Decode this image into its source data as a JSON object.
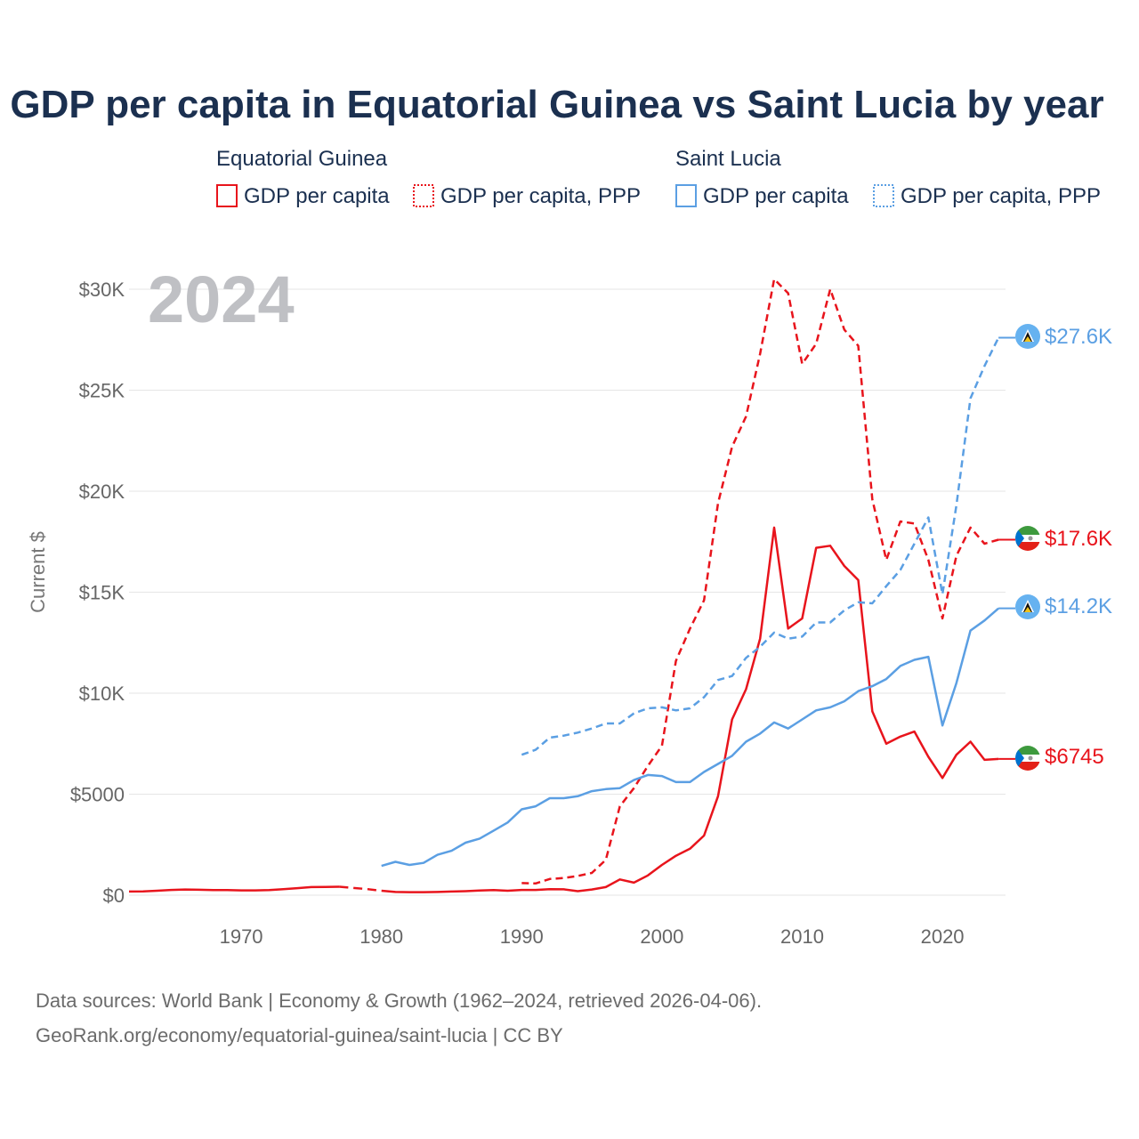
{
  "title": "GDP per capita in Equatorial Guinea vs Saint Lucia by year",
  "year_label": "2024",
  "legend": {
    "group_a": "Equatorial Guinea",
    "group_b": "Saint Lucia",
    "a_gdp": "GDP per capita",
    "a_ppp": "GDP per capita, PPP",
    "b_gdp": "GDP per capita",
    "b_ppp": "GDP per capita, PPP"
  },
  "colors": {
    "red": "#e8141c",
    "blue": "#5b9fe3",
    "grid": "#e6e6e6"
  },
  "end_labels": {
    "b_ppp": "$27.6K",
    "a_ppp": "$17.6K",
    "b_gdp": "$14.2K",
    "a_gdp": "$6745"
  },
  "source_line1": "Data sources: World Bank | Economy & Growth (1962–2024, retrieved 2026-04-06).",
  "source_line2": "GeoRank.org/economy/equatorial-guinea/saint-lucia | CC BY",
  "chart_data": {
    "type": "line",
    "title": "GDP per capita in Equatorial Guinea vs Saint Lucia by year",
    "ylabel": "Current $",
    "xlabel": "",
    "xlim": [
      1962,
      2024
    ],
    "ylim": [
      0,
      30000
    ],
    "x_ticks": [
      1970,
      1980,
      1990,
      2000,
      2010,
      2020
    ],
    "y_ticks": [
      0,
      5000,
      10000,
      15000,
      20000,
      25000,
      30000
    ],
    "y_tick_labels": [
      "$0",
      "$5000",
      "$10K",
      "$15K",
      "$20K",
      "$25K",
      "$30K"
    ],
    "series": [
      {
        "key": "a_gdp",
        "name": "Equatorial Guinea GDP per capita",
        "color": "red",
        "style": "solid",
        "points": [
          [
            1962,
            180
          ],
          [
            1963,
            190
          ],
          [
            1964,
            220
          ],
          [
            1965,
            260
          ],
          [
            1966,
            280
          ],
          [
            1967,
            270
          ],
          [
            1968,
            250
          ],
          [
            1969,
            250
          ],
          [
            1970,
            240
          ],
          [
            1971,
            240
          ],
          [
            1972,
            250
          ],
          [
            1973,
            300
          ],
          [
            1974,
            350
          ],
          [
            1975,
            400
          ],
          [
            1976,
            410
          ],
          [
            1977,
            420
          ],
          [
            1978,
            360
          ],
          [
            1979,
            300
          ],
          [
            1980,
            220
          ],
          [
            1981,
            160
          ],
          [
            1982,
            150
          ],
          [
            1983,
            150
          ],
          [
            1984,
            160
          ],
          [
            1985,
            180
          ],
          [
            1986,
            200
          ],
          [
            1987,
            230
          ],
          [
            1988,
            250
          ],
          [
            1989,
            220
          ],
          [
            1990,
            260
          ],
          [
            1991,
            260
          ],
          [
            1992,
            300
          ],
          [
            1993,
            290
          ],
          [
            1994,
            200
          ],
          [
            1995,
            280
          ],
          [
            1996,
            400
          ],
          [
            1997,
            780
          ],
          [
            1998,
            620
          ],
          [
            1999,
            980
          ],
          [
            2000,
            1500
          ],
          [
            2001,
            1950
          ],
          [
            2002,
            2300
          ],
          [
            2003,
            2950
          ],
          [
            2004,
            4900
          ],
          [
            2005,
            8700
          ],
          [
            2006,
            10200
          ],
          [
            2007,
            12700
          ],
          [
            2008,
            18200
          ],
          [
            2009,
            13200
          ],
          [
            2010,
            13700
          ],
          [
            2011,
            17200
          ],
          [
            2012,
            17300
          ],
          [
            2013,
            16300
          ],
          [
            2014,
            15600
          ],
          [
            2015,
            9100
          ],
          [
            2016,
            7500
          ],
          [
            2017,
            7850
          ],
          [
            2018,
            8100
          ],
          [
            2019,
            6850
          ],
          [
            2020,
            5800
          ],
          [
            2021,
            6950
          ],
          [
            2022,
            7600
          ],
          [
            2023,
            6700
          ],
          [
            2024,
            6745
          ]
        ],
        "gaps": [
          [
            1977,
            1980
          ]
        ]
      },
      {
        "key": "a_ppp",
        "name": "Equatorial Guinea GDP per capita, PPP",
        "color": "red",
        "style": "dashed",
        "points": [
          [
            1990,
            600
          ],
          [
            1991,
            580
          ],
          [
            1992,
            800
          ],
          [
            1993,
            850
          ],
          [
            1994,
            950
          ],
          [
            1995,
            1100
          ],
          [
            1996,
            1750
          ],
          [
            1997,
            4400
          ],
          [
            1998,
            5300
          ],
          [
            1999,
            6400
          ],
          [
            2000,
            7400
          ],
          [
            2001,
            11600
          ],
          [
            2002,
            13200
          ],
          [
            2003,
            14600
          ],
          [
            2004,
            19400
          ],
          [
            2005,
            22200
          ],
          [
            2006,
            23700
          ],
          [
            2007,
            26800
          ],
          [
            2008,
            30500
          ],
          [
            2009,
            29800
          ],
          [
            2010,
            26300
          ],
          [
            2011,
            27300
          ],
          [
            2012,
            30000
          ],
          [
            2013,
            28000
          ],
          [
            2014,
            27200
          ],
          [
            2015,
            19600
          ],
          [
            2016,
            16600
          ],
          [
            2017,
            18500
          ],
          [
            2018,
            18400
          ],
          [
            2019,
            16600
          ],
          [
            2020,
            13700
          ],
          [
            2021,
            16800
          ],
          [
            2022,
            18200
          ],
          [
            2023,
            17400
          ],
          [
            2024,
            17600
          ]
        ],
        "gaps": []
      },
      {
        "key": "b_gdp",
        "name": "Saint Lucia GDP per capita",
        "color": "blue",
        "style": "solid",
        "points": [
          [
            1980,
            1450
          ],
          [
            1981,
            1650
          ],
          [
            1982,
            1500
          ],
          [
            1983,
            1600
          ],
          [
            1984,
            2000
          ],
          [
            1985,
            2200
          ],
          [
            1986,
            2600
          ],
          [
            1987,
            2800
          ],
          [
            1988,
            3200
          ],
          [
            1989,
            3600
          ],
          [
            1990,
            4250
          ],
          [
            1991,
            4400
          ],
          [
            1992,
            4800
          ],
          [
            1993,
            4800
          ],
          [
            1994,
            4900
          ],
          [
            1995,
            5150
          ],
          [
            1996,
            5250
          ],
          [
            1997,
            5300
          ],
          [
            1998,
            5700
          ],
          [
            1999,
            5950
          ],
          [
            2000,
            5900
          ],
          [
            2001,
            5600
          ],
          [
            2002,
            5600
          ],
          [
            2003,
            6100
          ],
          [
            2004,
            6500
          ],
          [
            2005,
            6900
          ],
          [
            2006,
            7600
          ],
          [
            2007,
            8000
          ],
          [
            2008,
            8550
          ],
          [
            2009,
            8250
          ],
          [
            2010,
            8700
          ],
          [
            2011,
            9150
          ],
          [
            2012,
            9300
          ],
          [
            2013,
            9600
          ],
          [
            2014,
            10100
          ],
          [
            2015,
            10350
          ],
          [
            2016,
            10700
          ],
          [
            2017,
            11350
          ],
          [
            2018,
            11650
          ],
          [
            2019,
            11800
          ],
          [
            2020,
            8400
          ],
          [
            2021,
            10500
          ],
          [
            2022,
            13100
          ],
          [
            2023,
            13600
          ],
          [
            2024,
            14200
          ]
        ],
        "gaps": []
      },
      {
        "key": "b_ppp",
        "name": "Saint Lucia GDP per capita, PPP",
        "color": "blue",
        "style": "dashed",
        "points": [
          [
            1990,
            6950
          ],
          [
            1991,
            7200
          ],
          [
            1992,
            7800
          ],
          [
            1993,
            7900
          ],
          [
            1994,
            8050
          ],
          [
            1995,
            8250
          ],
          [
            1996,
            8500
          ],
          [
            1997,
            8500
          ],
          [
            1998,
            9000
          ],
          [
            1999,
            9250
          ],
          [
            2000,
            9300
          ],
          [
            2001,
            9150
          ],
          [
            2002,
            9250
          ],
          [
            2003,
            9800
          ],
          [
            2004,
            10650
          ],
          [
            2005,
            10850
          ],
          [
            2006,
            11750
          ],
          [
            2007,
            12300
          ],
          [
            2008,
            13000
          ],
          [
            2009,
            12700
          ],
          [
            2010,
            12800
          ],
          [
            2011,
            13500
          ],
          [
            2012,
            13500
          ],
          [
            2013,
            14100
          ],
          [
            2014,
            14500
          ],
          [
            2015,
            14450
          ],
          [
            2016,
            15300
          ],
          [
            2017,
            16100
          ],
          [
            2018,
            17400
          ],
          [
            2019,
            18700
          ],
          [
            2020,
            14900
          ],
          [
            2021,
            19300
          ],
          [
            2022,
            24600
          ],
          [
            2023,
            26200
          ],
          [
            2024,
            27600
          ]
        ],
        "gaps": []
      }
    ]
  }
}
